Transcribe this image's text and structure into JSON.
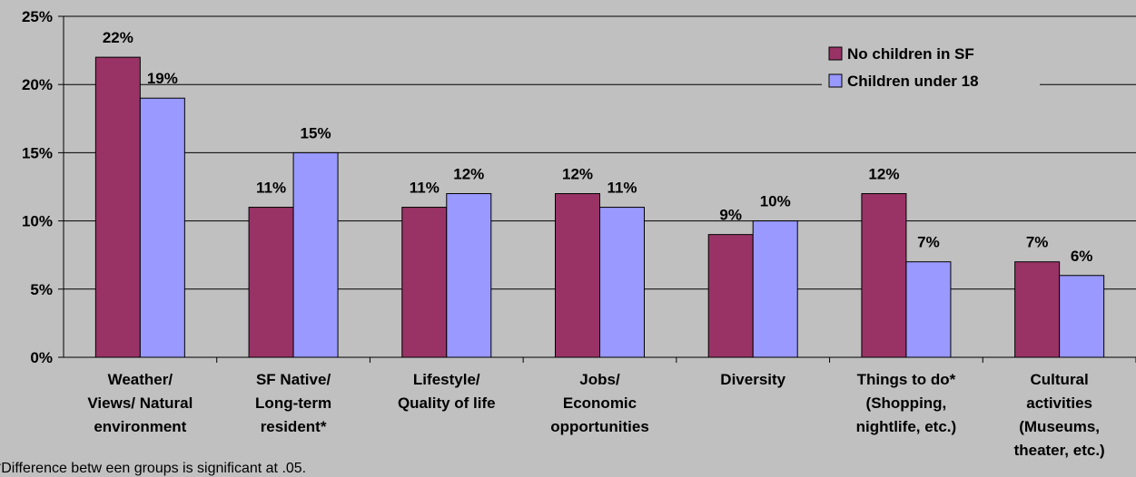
{
  "chart_data": {
    "type": "bar",
    "categories": [
      [
        "Weather/",
        "Views/ Natural",
        "environment"
      ],
      [
        "SF Native/",
        "Long-term",
        "resident*"
      ],
      [
        "Lifestyle/",
        "Quality of life"
      ],
      [
        "Jobs/",
        "Economic",
        "opportunities"
      ],
      [
        "Diversity"
      ],
      [
        "Things to do*",
        "(Shopping,",
        "nightlife, etc.)"
      ],
      [
        "Cultural",
        "activities",
        "(Museums,",
        "theater, etc.)"
      ]
    ],
    "series": [
      {
        "name": "No children in SF",
        "values": [
          22,
          11,
          11,
          12,
          9,
          12,
          7
        ],
        "color": "#993366"
      },
      {
        "name": "Children under 18",
        "values": [
          19,
          15,
          12,
          11,
          10,
          7,
          6
        ],
        "color": "#9999ff"
      }
    ],
    "value_suffix": "%",
    "yticks": [
      "0%",
      "5%",
      "10%",
      "15%",
      "20%",
      "25%"
    ],
    "ylim": [
      0,
      25
    ],
    "legend_position": "top-right",
    "footnote": "*Difference betw een groups is significant at .05."
  }
}
